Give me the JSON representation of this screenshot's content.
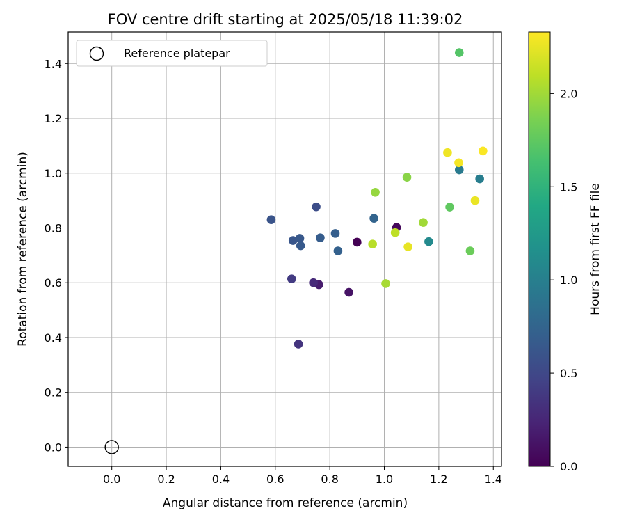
{
  "chart_data": {
    "type": "scatter",
    "title": "FOV centre drift starting at 2025/05/18 11:39:02",
    "xlabel": "Angular distance from reference (arcmin)",
    "ylabel": "Rotation from reference (arcmin)",
    "xlim": [
      -0.16,
      1.43
    ],
    "ylim": [
      -0.07,
      1.515
    ],
    "xticks": [
      0.0,
      0.2,
      0.4,
      0.6,
      0.8,
      1.0,
      1.2,
      1.4
    ],
    "xtick_labels": [
      "0.0",
      "0.2",
      "0.4",
      "0.6",
      "0.8",
      "1.0",
      "1.2",
      "1.4"
    ],
    "yticks": [
      0.0,
      0.2,
      0.4,
      0.6,
      0.8,
      1.0,
      1.2,
      1.4
    ],
    "ytick_labels": [
      "0.0",
      "0.2",
      "0.4",
      "0.6",
      "0.8",
      "1.0",
      "1.2",
      "1.4"
    ],
    "grid": true,
    "legend": {
      "placement": "top-left",
      "entries": [
        {
          "label": "Reference platepar",
          "marker": "open-circle"
        }
      ]
    },
    "reference_point": {
      "x": 0.0,
      "y": 0.0
    },
    "colorbar": {
      "label": "Hours from first FF file",
      "colormap": "viridis",
      "range": [
        0.0,
        2.33
      ],
      "ticks": [
        0.0,
        0.5,
        1.0,
        1.5,
        2.0
      ],
      "tick_labels": [
        "0.0",
        "0.5",
        "1.0",
        "1.5",
        "2.0"
      ]
    },
    "points": [
      {
        "x": 0.9,
        "y": 0.748,
        "c": 0.0
      },
      {
        "x": 1.045,
        "y": 0.802,
        "c": 0.05
      },
      {
        "x": 0.87,
        "y": 0.565,
        "c": 0.12
      },
      {
        "x": 0.76,
        "y": 0.593,
        "c": 0.18
      },
      {
        "x": 0.74,
        "y": 0.6,
        "c": 0.28
      },
      {
        "x": 0.685,
        "y": 0.376,
        "c": 0.35
      },
      {
        "x": 0.66,
        "y": 0.614,
        "c": 0.4
      },
      {
        "x": 0.75,
        "y": 0.877,
        "c": 0.55
      },
      {
        "x": 0.585,
        "y": 0.83,
        "c": 0.6
      },
      {
        "x": 0.665,
        "y": 0.754,
        "c": 0.62
      },
      {
        "x": 0.69,
        "y": 0.762,
        "c": 0.64
      },
      {
        "x": 0.693,
        "y": 0.735,
        "c": 0.66
      },
      {
        "x": 0.765,
        "y": 0.764,
        "c": 0.68
      },
      {
        "x": 0.82,
        "y": 0.78,
        "c": 0.7
      },
      {
        "x": 0.83,
        "y": 0.716,
        "c": 0.72
      },
      {
        "x": 0.962,
        "y": 0.835,
        "c": 0.75
      },
      {
        "x": 1.275,
        "y": 1.012,
        "c": 0.95
      },
      {
        "x": 1.35,
        "y": 0.979,
        "c": 0.98
      },
      {
        "x": 1.163,
        "y": 0.75,
        "c": 1.1
      },
      {
        "x": 1.275,
        "y": 1.44,
        "c": 1.7
      },
      {
        "x": 1.24,
        "y": 0.876,
        "c": 1.75
      },
      {
        "x": 1.315,
        "y": 0.716,
        "c": 1.8
      },
      {
        "x": 1.083,
        "y": 0.985,
        "c": 1.92
      },
      {
        "x": 0.967,
        "y": 0.93,
        "c": 1.96
      },
      {
        "x": 1.143,
        "y": 0.82,
        "c": 2.0
      },
      {
        "x": 1.005,
        "y": 0.597,
        "c": 2.02
      },
      {
        "x": 0.957,
        "y": 0.741,
        "c": 2.08
      },
      {
        "x": 1.04,
        "y": 0.783,
        "c": 2.1
      },
      {
        "x": 1.087,
        "y": 0.731,
        "c": 2.25
      },
      {
        "x": 1.333,
        "y": 0.9,
        "c": 2.26
      },
      {
        "x": 1.232,
        "y": 1.075,
        "c": 2.28
      },
      {
        "x": 1.273,
        "y": 1.038,
        "c": 2.3
      },
      {
        "x": 1.362,
        "y": 1.081,
        "c": 2.32
      }
    ]
  }
}
